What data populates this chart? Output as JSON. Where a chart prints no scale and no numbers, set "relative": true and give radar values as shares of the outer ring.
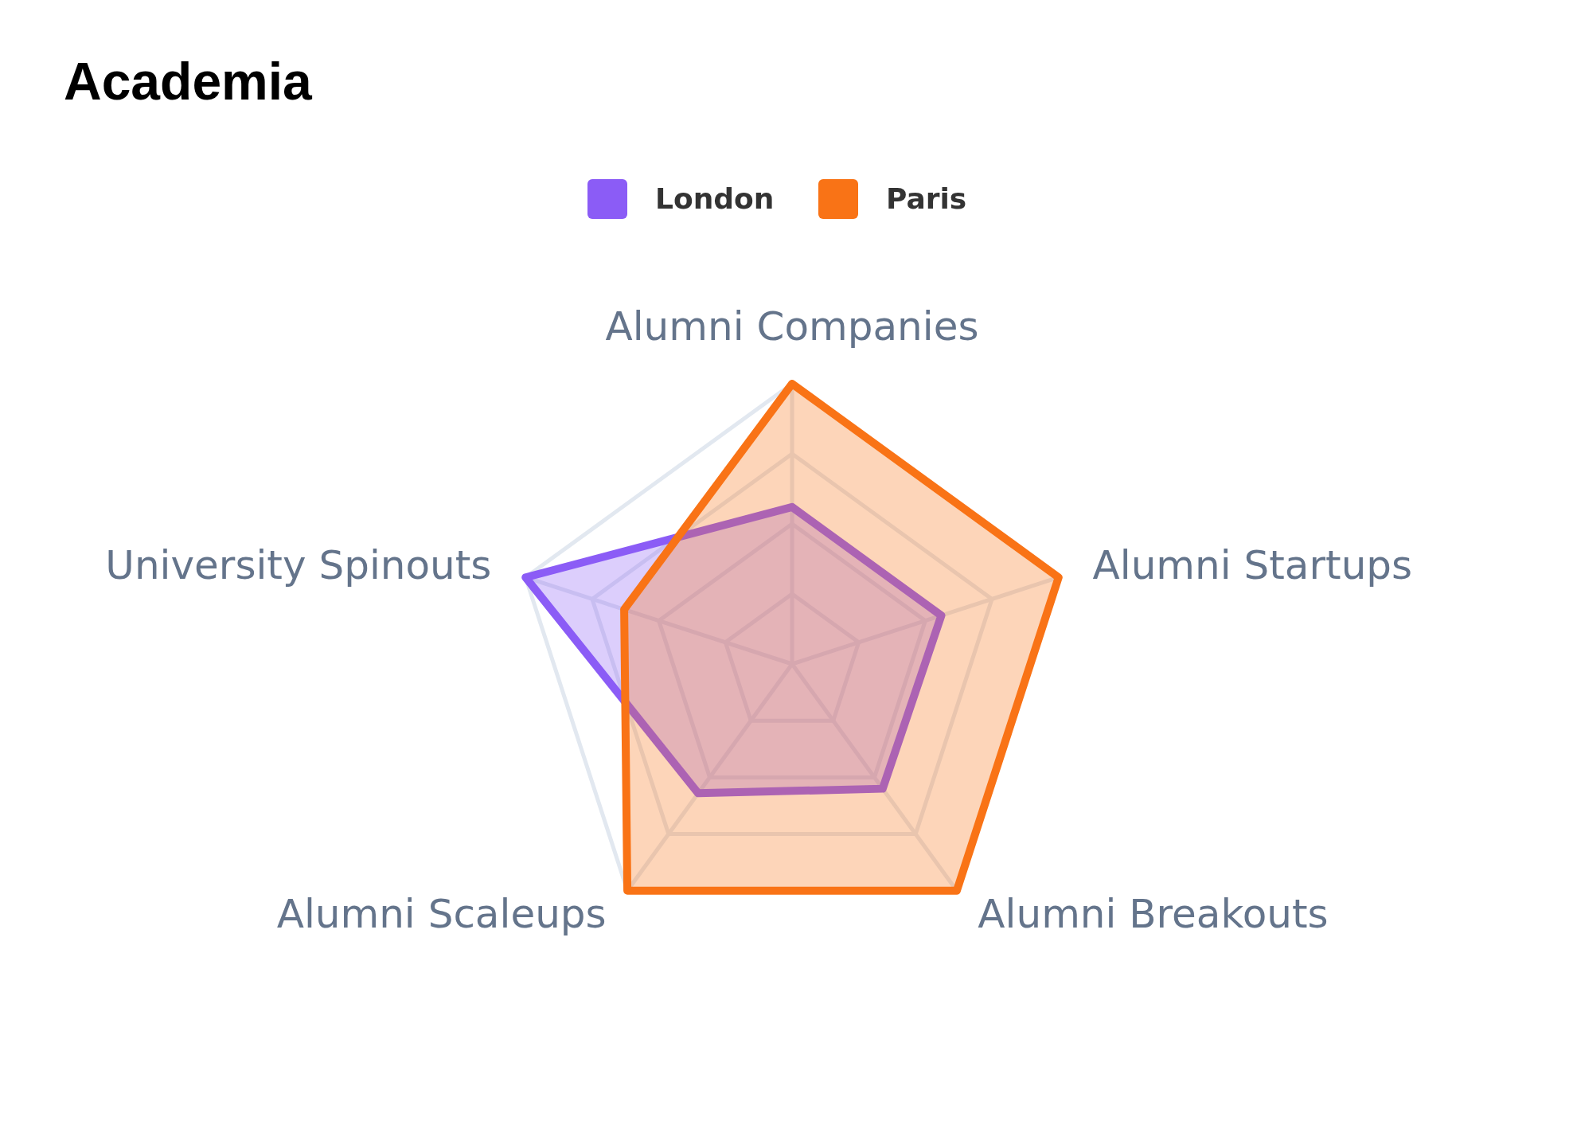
{
  "chart_data": {
    "type": "radar",
    "title": "Academia",
    "relative": true,
    "grid": true,
    "legend": "top",
    "categories": [
      "Alumni Companies",
      "Alumni Startups",
      "Alumni Breakouts",
      "Alumni Scaleups",
      "University Spinouts"
    ],
    "series": [
      {
        "name": "London",
        "color": "#8b5cf6",
        "values": [
          0.56,
          0.56,
          0.55,
          0.57,
          1.0
        ]
      },
      {
        "name": "Paris",
        "color": "#f97316",
        "values": [
          1.0,
          1.0,
          1.0,
          1.0,
          0.63
        ]
      }
    ]
  }
}
